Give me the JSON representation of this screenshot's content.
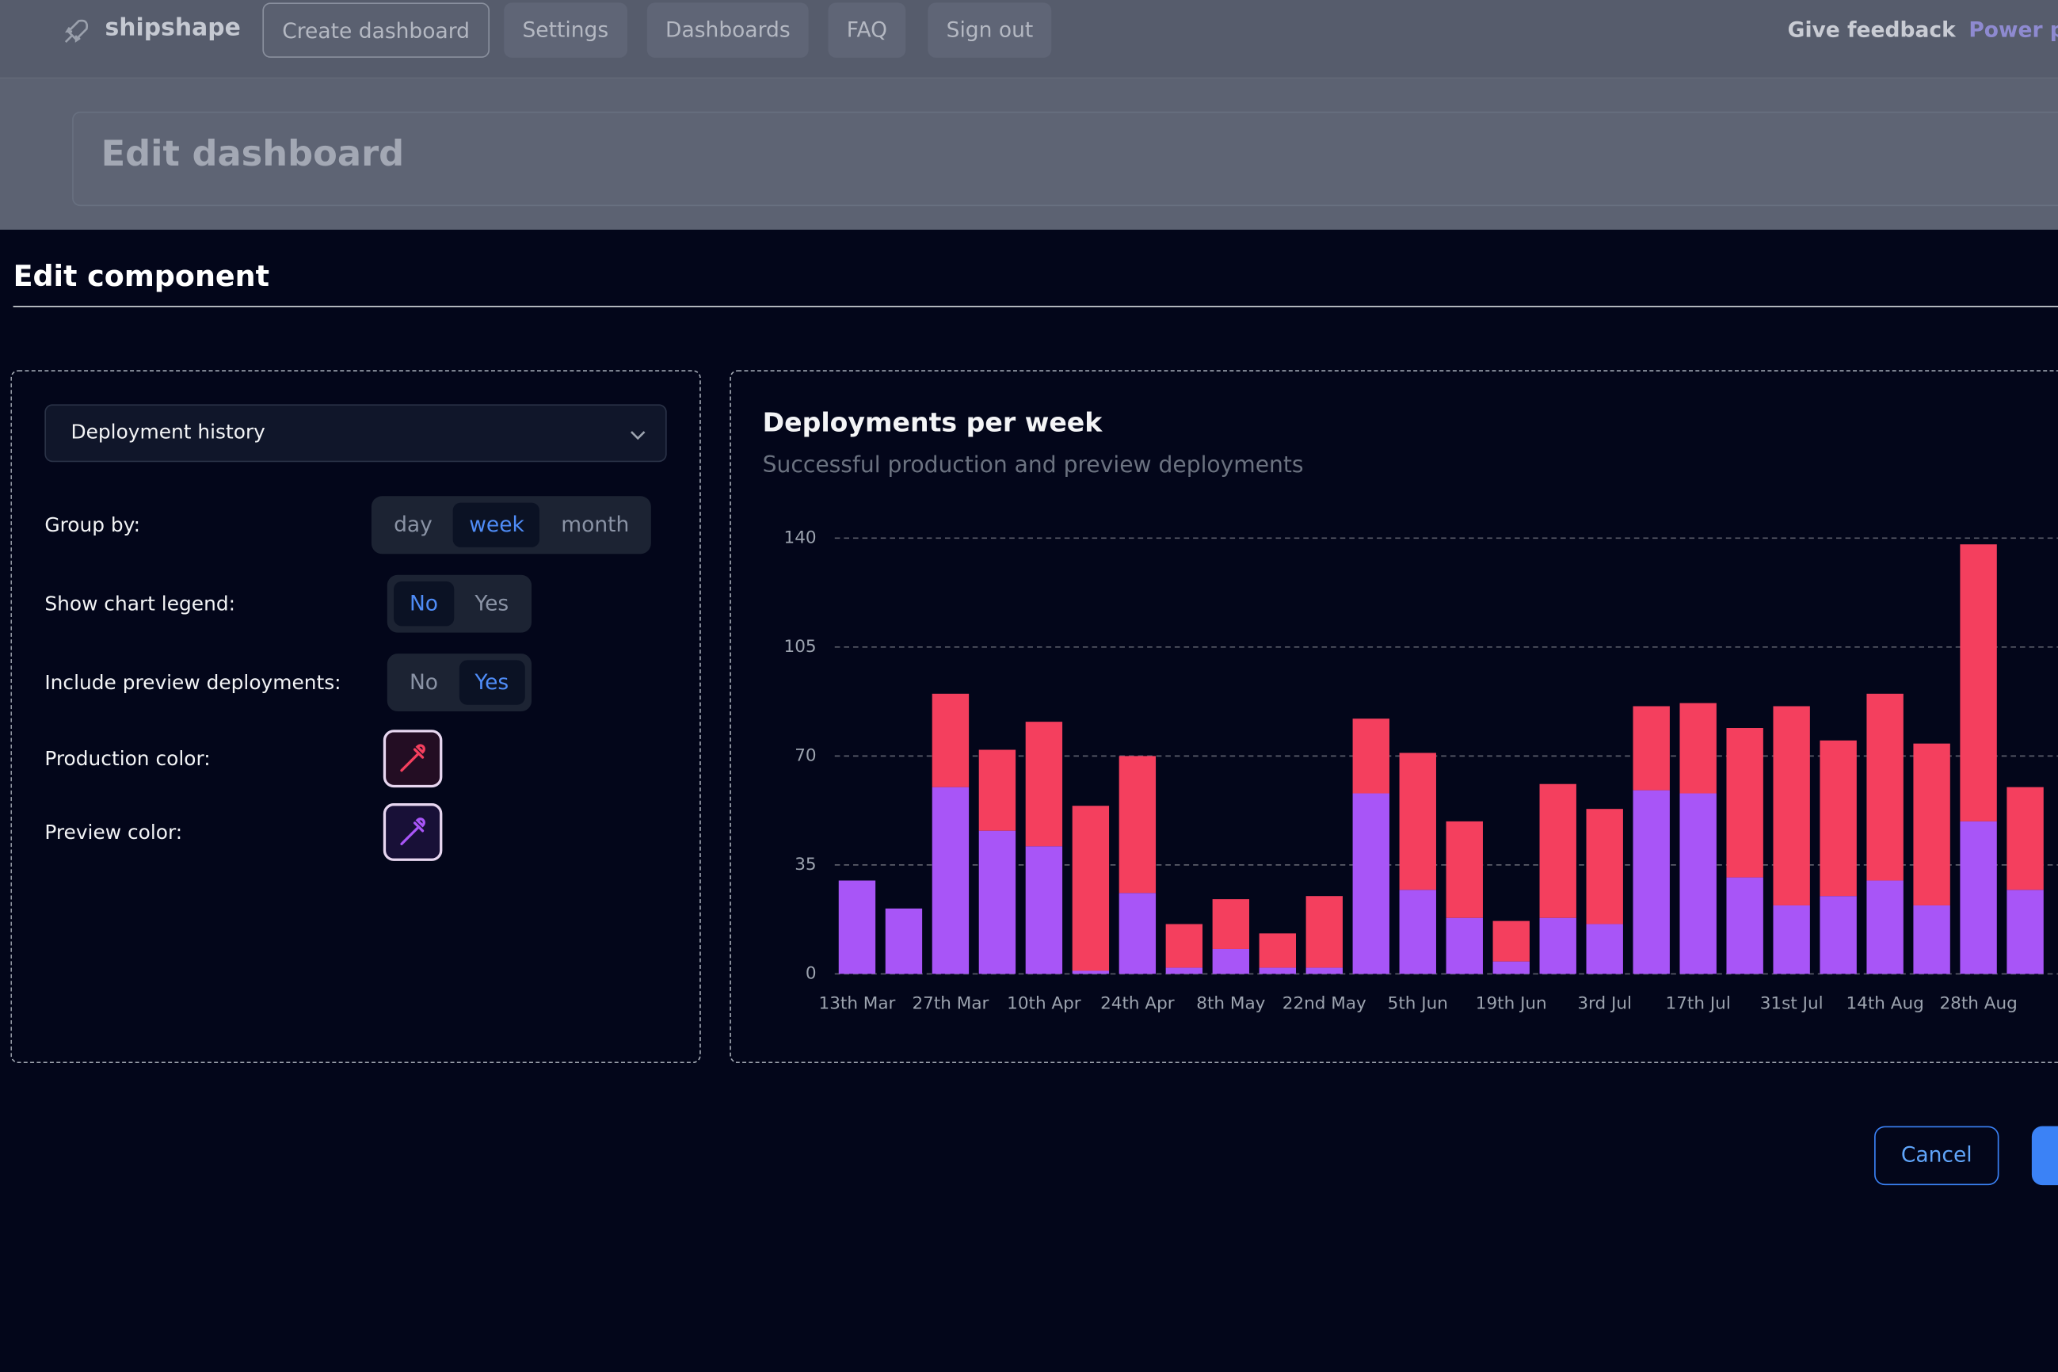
{
  "nav": {
    "brand": "shipshape",
    "items": [
      "Create dashboard",
      "Settings",
      "Dashboards",
      "FAQ",
      "Sign out"
    ],
    "feedback": "Give feedback",
    "power": "Power p"
  },
  "page_title": "Edit dashboard",
  "modal": {
    "title": "Edit component",
    "component": "Deployment history",
    "fields": [
      {
        "label": "Group by:",
        "options": [
          "day",
          "week",
          "month"
        ],
        "selected": 1
      },
      {
        "label": "Show chart legend:",
        "options": [
          "No",
          "Yes"
        ],
        "selected": 0
      },
      {
        "label": "Include preview deployments:",
        "options": [
          "No",
          "Yes"
        ],
        "selected": 1
      }
    ],
    "colors": [
      {
        "label": "Production color:",
        "color": "#f43f5e"
      },
      {
        "label": "Preview color:",
        "color": "#a855f7"
      }
    ],
    "cancel": "Cancel"
  },
  "chart_data": {
    "type": "bar",
    "stacked": true,
    "title": "Deployments per week",
    "subtitle": "Successful production and preview deployments",
    "categories": [
      "13th Mar",
      null,
      "27th Mar",
      null,
      "10th Apr",
      null,
      "24th Apr",
      null,
      "8th May",
      null,
      "22nd May",
      null,
      "5th Jun",
      null,
      "19th Jun",
      null,
      "3rd Jul",
      null,
      "17th Jul",
      null,
      "31st Jul",
      null,
      "14th Aug",
      null,
      "28th Aug",
      null
    ],
    "series": [
      {
        "color": "#a855f7",
        "values": [
          30,
          21,
          60,
          46,
          41,
          1,
          26,
          2,
          8,
          2,
          2,
          58,
          27,
          18,
          4,
          18,
          16,
          59,
          58,
          31,
          22,
          25,
          30,
          22,
          49,
          27
        ]
      },
      {
        "color": "#f43f5e",
        "values": [
          0,
          0,
          30,
          26,
          40,
          53,
          44,
          14,
          16,
          11,
          23,
          24,
          44,
          31,
          13,
          43,
          37,
          27,
          29,
          48,
          64,
          50,
          60,
          52,
          89,
          33
        ]
      }
    ],
    "ylim": [
      0,
      140
    ],
    "yticks": [
      0,
      35,
      70,
      105,
      140
    ],
    "grid": true,
    "legend": false
  }
}
